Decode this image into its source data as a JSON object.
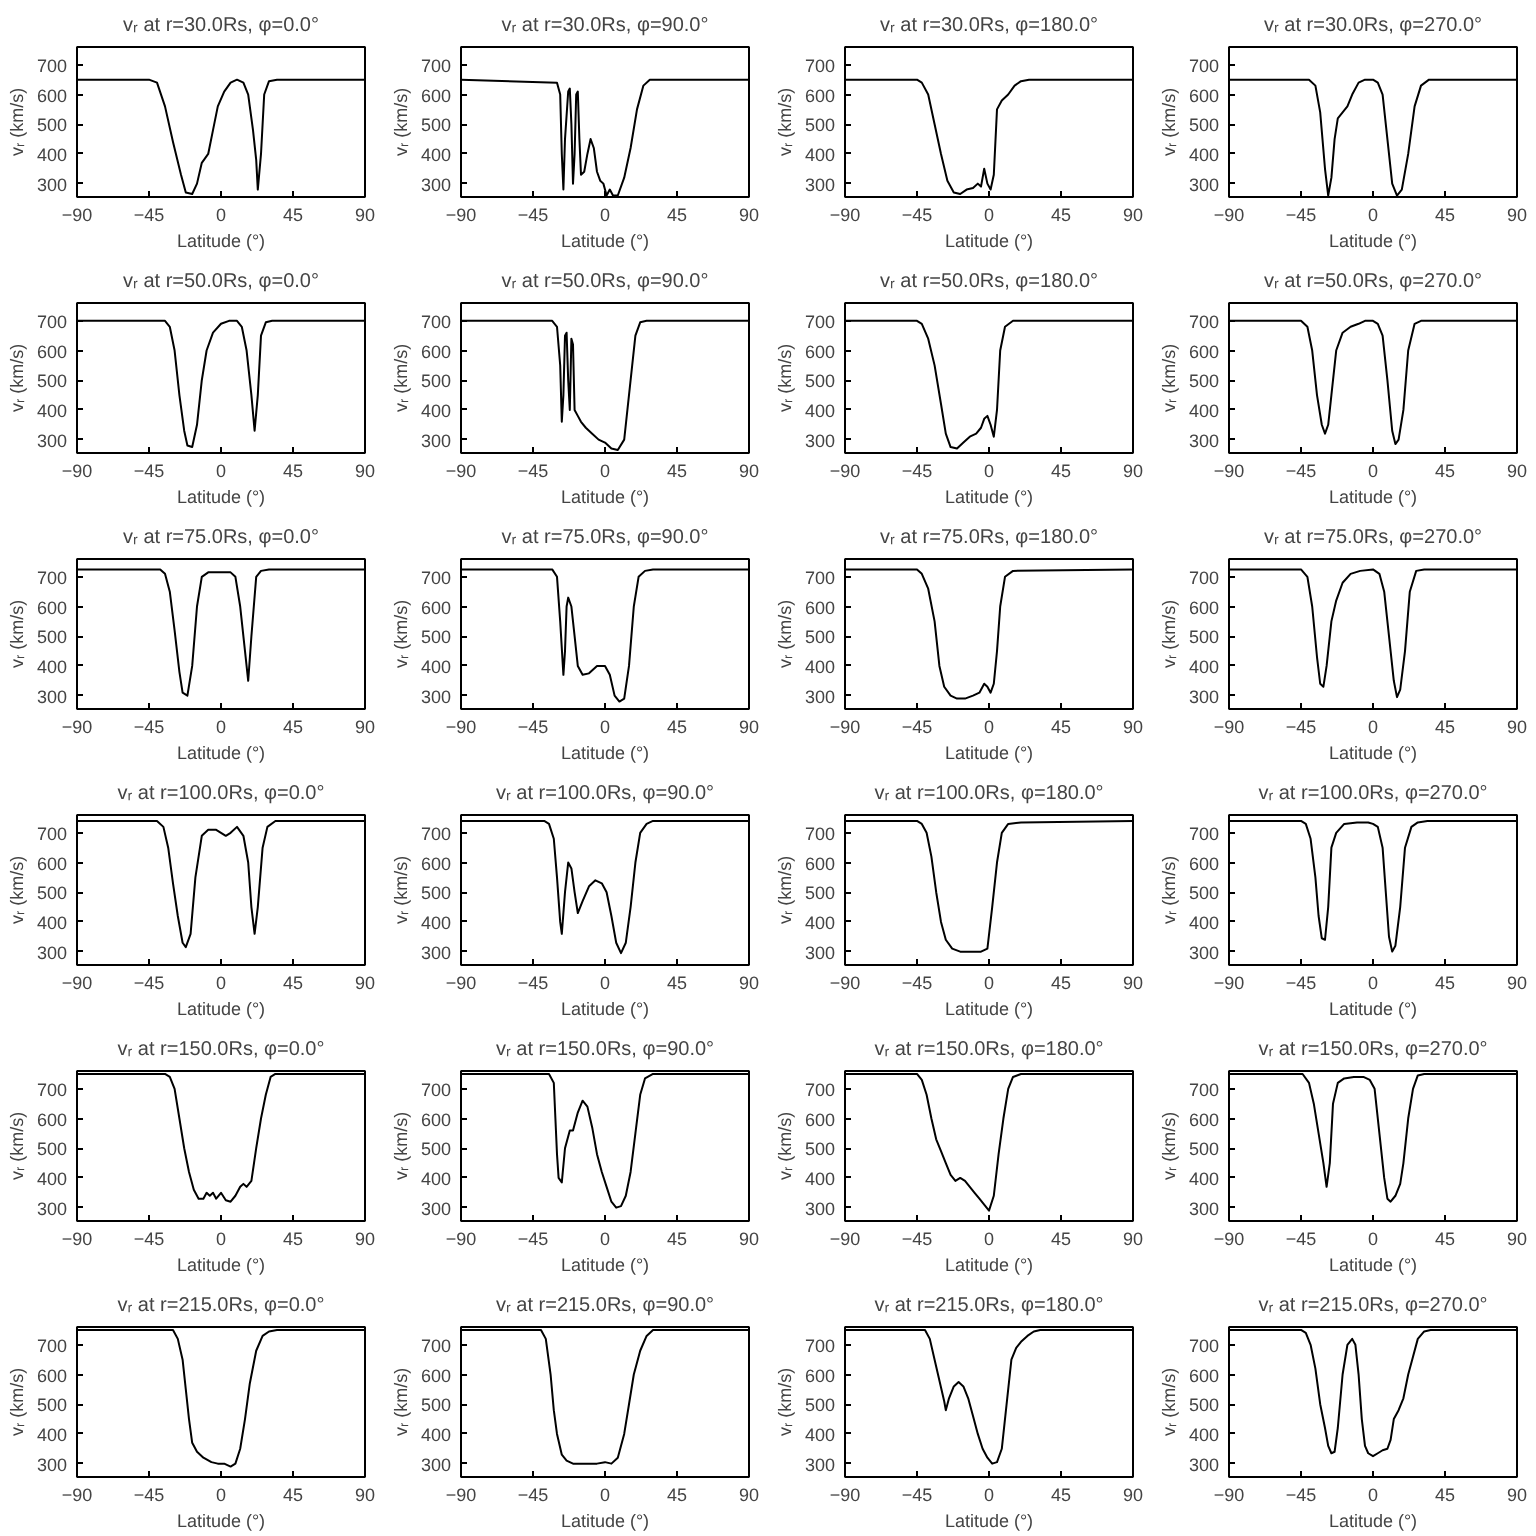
{
  "chart_data": [
    {
      "type": "line",
      "title": "vᵣ at r=30.0Rs, φ=0.0°",
      "xlabel": "Latitude (°)",
      "ylabel": "vᵣ (km/s)",
      "color": "#000000",
      "xlim": [
        -90,
        90
      ],
      "xticks": [
        -90,
        -45,
        0,
        45,
        90
      ],
      "ylim": [
        255,
        760
      ],
      "yticks": [
        300,
        400,
        500,
        600,
        700
      ],
      "grid": false,
      "x": [
        -90,
        -45,
        -40,
        -35,
        -30,
        -25,
        -22,
        -18,
        -15,
        -12,
        -8,
        -5,
        -2,
        2,
        6,
        10,
        14,
        17,
        20,
        22,
        23,
        25,
        27,
        30,
        35,
        90
      ],
      "values": [
        650,
        650,
        640,
        560,
        440,
        330,
        270,
        265,
        300,
        370,
        400,
        480,
        560,
        610,
        640,
        650,
        640,
        600,
        480,
        380,
        280,
        400,
        600,
        645,
        650,
        650
      ]
    },
    {
      "type": "line",
      "title": "vᵣ at r=30.0Rs, φ=90.0°",
      "xlabel": "Latitude (°)",
      "ylabel": "vᵣ (km/s)",
      "color": "#000000",
      "xlim": [
        -90,
        90
      ],
      "xticks": [
        -90,
        -45,
        0,
        45,
        90
      ],
      "ylim": [
        255,
        760
      ],
      "yticks": [
        300,
        400,
        500,
        600,
        700
      ],
      "grid": false,
      "x": [
        -90,
        -30,
        -28,
        -27,
        -26,
        -25,
        -23,
        -22,
        -21,
        -20,
        -19,
        -18,
        -17,
        -16,
        -15,
        -13,
        -11,
        -9,
        -7,
        -5,
        -3,
        -1,
        1,
        3,
        5,
        8,
        12,
        16,
        20,
        24,
        28,
        90
      ],
      "values": [
        650,
        640,
        600,
        400,
        280,
        450,
        610,
        620,
        500,
        300,
        400,
        600,
        610,
        450,
        330,
        340,
        400,
        450,
        420,
        340,
        310,
        300,
        260,
        280,
        260,
        260,
        320,
        420,
        550,
        630,
        650,
        650
      ]
    },
    {
      "type": "line",
      "title": "vᵣ at r=30.0Rs, φ=180.0°",
      "xlabel": "Latitude (°)",
      "ylabel": "vᵣ (km/s)",
      "color": "#000000",
      "xlim": [
        -90,
        90
      ],
      "xticks": [
        -90,
        -45,
        0,
        45,
        90
      ],
      "ylim": [
        255,
        760
      ],
      "yticks": [
        300,
        400,
        500,
        600,
        700
      ],
      "grid": false,
      "x": [
        -90,
        -45,
        -42,
        -38,
        -34,
        -30,
        -26,
        -22,
        -18,
        -14,
        -10,
        -7,
        -5,
        -3,
        -1,
        1,
        3,
        5,
        8,
        12,
        16,
        20,
        25,
        90
      ],
      "values": [
        650,
        650,
        640,
        600,
        500,
        400,
        310,
        270,
        265,
        280,
        285,
        300,
        290,
        350,
        300,
        280,
        330,
        550,
        580,
        600,
        630,
        645,
        650,
        650
      ]
    },
    {
      "type": "line",
      "title": "vᵣ at r=30.0Rs, φ=270.0°",
      "xlabel": "Latitude (°)",
      "ylabel": "vᵣ (km/s)",
      "color": "#000000",
      "xlim": [
        -90,
        90
      ],
      "xticks": [
        -90,
        -45,
        0,
        45,
        90
      ],
      "ylim": [
        255,
        760
      ],
      "yticks": [
        300,
        400,
        500,
        600,
        700
      ],
      "grid": false,
      "x": [
        -90,
        -40,
        -36,
        -33,
        -30,
        -28,
        -26,
        -24,
        -22,
        -19,
        -16,
        -13,
        -9,
        -5,
        0,
        3,
        6,
        9,
        12,
        15,
        18,
        22,
        26,
        30,
        35,
        90
      ],
      "values": [
        650,
        650,
        630,
        540,
        350,
        260,
        320,
        450,
        520,
        540,
        560,
        600,
        640,
        650,
        650,
        640,
        600,
        450,
        300,
        260,
        280,
        400,
        560,
        630,
        650,
        650
      ]
    },
    {
      "type": "line",
      "title": "vᵣ at r=50.0Rs, φ=0.0°",
      "xlabel": "Latitude (°)",
      "ylabel": "vᵣ (km/s)",
      "color": "#000000",
      "xlim": [
        -90,
        90
      ],
      "xticks": [
        -90,
        -45,
        0,
        45,
        90
      ],
      "ylim": [
        255,
        760
      ],
      "yticks": [
        300,
        400,
        500,
        600,
        700
      ],
      "grid": false,
      "x": [
        -90,
        -35,
        -32,
        -29,
        -26,
        -23,
        -21,
        -18,
        -15,
        -12,
        -9,
        -5,
        0,
        5,
        10,
        13,
        16,
        19,
        21,
        23,
        25,
        28,
        32,
        90
      ],
      "values": [
        700,
        700,
        680,
        600,
        450,
        330,
        280,
        275,
        350,
        500,
        600,
        660,
        690,
        700,
        700,
        680,
        600,
        450,
        330,
        450,
        650,
        695,
        700,
        700
      ]
    },
    {
      "type": "line",
      "title": "vᵣ at r=50.0Rs, φ=90.0°",
      "xlabel": "Latitude (°)",
      "ylabel": "vᵣ (km/s)",
      "color": "#000000",
      "xlim": [
        -90,
        90
      ],
      "xticks": [
        -90,
        -45,
        0,
        45,
        90
      ],
      "ylim": [
        255,
        760
      ],
      "yticks": [
        300,
        400,
        500,
        600,
        700
      ],
      "grid": false,
      "x": [
        -90,
        -33,
        -30,
        -28,
        -27,
        -26,
        -25,
        -24,
        -23,
        -22,
        -21,
        -20,
        -19,
        -17,
        -15,
        -12,
        -8,
        -4,
        0,
        4,
        8,
        12,
        16,
        19,
        22,
        26,
        90
      ],
      "values": [
        700,
        700,
        680,
        550,
        360,
        450,
        650,
        660,
        500,
        400,
        640,
        620,
        400,
        380,
        360,
        340,
        320,
        300,
        290,
        270,
        265,
        300,
        500,
        650,
        695,
        700,
        700
      ]
    },
    {
      "type": "line",
      "title": "vᵣ at r=50.0Rs, φ=180.0°",
      "xlabel": "Latitude (°)",
      "ylabel": "vᵣ (km/s)",
      "color": "#000000",
      "xlim": [
        -90,
        90
      ],
      "xticks": [
        -90,
        -45,
        0,
        45,
        90
      ],
      "ylim": [
        255,
        760
      ],
      "yticks": [
        300,
        400,
        500,
        600,
        700
      ],
      "grid": false,
      "x": [
        -90,
        -45,
        -42,
        -38,
        -34,
        -30,
        -27,
        -24,
        -20,
        -16,
        -12,
        -8,
        -5,
        -3,
        -1,
        1,
        3,
        5,
        7,
        10,
        15,
        90
      ],
      "values": [
        700,
        700,
        690,
        640,
        550,
        420,
        320,
        275,
        270,
        290,
        310,
        320,
        340,
        370,
        380,
        350,
        310,
        400,
        600,
        680,
        700,
        700
      ]
    },
    {
      "type": "line",
      "title": "vᵣ at r=50.0Rs, φ=270.0°",
      "xlabel": "Latitude (°)",
      "ylabel": "vᵣ (km/s)",
      "color": "#000000",
      "xlim": [
        -90,
        90
      ],
      "xticks": [
        -90,
        -45,
        0,
        45,
        90
      ],
      "ylim": [
        255,
        760
      ],
      "yticks": [
        300,
        400,
        500,
        600,
        700
      ],
      "grid": false,
      "x": [
        -90,
        -45,
        -41,
        -38,
        -35,
        -32,
        -30,
        -28,
        -26,
        -23,
        -19,
        -14,
        -9,
        -5,
        0,
        3,
        6,
        9,
        12,
        14,
        16,
        19,
        22,
        26,
        30,
        90
      ],
      "values": [
        700,
        700,
        680,
        600,
        450,
        350,
        320,
        350,
        450,
        600,
        660,
        680,
        690,
        700,
        700,
        690,
        650,
        500,
        330,
        285,
        300,
        400,
        600,
        690,
        700,
        700
      ]
    },
    {
      "type": "line",
      "title": "vᵣ at r=75.0Rs, φ=0.0°",
      "xlabel": "Latitude (°)",
      "ylabel": "vᵣ (km/s)",
      "color": "#000000",
      "xlim": [
        -90,
        90
      ],
      "xticks": [
        -90,
        -45,
        0,
        45,
        90
      ],
      "ylim": [
        255,
        760
      ],
      "yticks": [
        300,
        400,
        500,
        600,
        700
      ],
      "grid": false,
      "x": [
        -90,
        -38,
        -35,
        -32,
        -29,
        -26,
        -24,
        -21,
        -18,
        -15,
        -12,
        -8,
        0,
        6,
        9,
        12,
        15,
        17,
        19,
        22,
        25,
        30,
        90
      ],
      "values": [
        725,
        725,
        710,
        650,
        520,
        380,
        310,
        300,
        400,
        600,
        700,
        715,
        715,
        715,
        700,
        600,
        450,
        350,
        500,
        700,
        720,
        725,
        725
      ]
    },
    {
      "type": "line",
      "title": "vᵣ at r=75.0Rs, φ=90.0°",
      "xlabel": "Latitude (°)",
      "ylabel": "vᵣ (km/s)",
      "color": "#000000",
      "xlim": [
        -90,
        90
      ],
      "xticks": [
        -90,
        -45,
        0,
        45,
        90
      ],
      "ylim": [
        255,
        760
      ],
      "yticks": [
        300,
        400,
        500,
        600,
        700
      ],
      "grid": false,
      "x": [
        -90,
        -33,
        -30,
        -28,
        -26,
        -25,
        -24,
        -23,
        -21,
        -19,
        -17,
        -14,
        -10,
        -5,
        0,
        3,
        6,
        9,
        12,
        15,
        18,
        21,
        25,
        30,
        90
      ],
      "values": [
        725,
        725,
        700,
        550,
        370,
        450,
        600,
        630,
        600,
        500,
        400,
        370,
        375,
        400,
        400,
        370,
        300,
        280,
        290,
        400,
        600,
        700,
        720,
        725,
        725
      ]
    },
    {
      "type": "line",
      "title": "vᵣ at r=75.0Rs, φ=180.0°",
      "xlabel": "Latitude (°)",
      "ylabel": "vᵣ (km/s)",
      "color": "#000000",
      "xlim": [
        -90,
        90
      ],
      "xticks": [
        -90,
        -45,
        0,
        45,
        90
      ],
      "ylim": [
        255,
        760
      ],
      "yticks": [
        300,
        400,
        500,
        600,
        700
      ],
      "grid": false,
      "x": [
        -90,
        -45,
        -42,
        -38,
        -34,
        -31,
        -28,
        -24,
        -20,
        -15,
        -10,
        -6,
        -3,
        -1,
        1,
        3,
        5,
        7,
        10,
        15,
        90
      ],
      "values": [
        725,
        725,
        710,
        660,
        550,
        400,
        330,
        300,
        290,
        290,
        300,
        310,
        340,
        330,
        310,
        340,
        450,
        600,
        700,
        720,
        725
      ]
    },
    {
      "type": "line",
      "title": "vᵣ at r=75.0Rs, φ=270.0°",
      "xlabel": "Latitude (°)",
      "ylabel": "vᵣ (km/s)",
      "color": "#000000",
      "xlim": [
        -90,
        90
      ],
      "xticks": [
        -90,
        -45,
        0,
        45,
        90
      ],
      "ylim": [
        255,
        760
      ],
      "yticks": [
        300,
        400,
        500,
        600,
        700
      ],
      "grid": false,
      "x": [
        -90,
        -45,
        -41,
        -38,
        -35,
        -33,
        -31,
        -29,
        -26,
        -23,
        -19,
        -14,
        -8,
        0,
        4,
        7,
        10,
        13,
        15,
        17,
        20,
        23,
        27,
        32,
        90
      ],
      "values": [
        725,
        725,
        700,
        600,
        430,
        340,
        330,
        400,
        550,
        620,
        680,
        710,
        720,
        725,
        710,
        650,
        500,
        350,
        295,
        320,
        450,
        650,
        720,
        725,
        725
      ]
    },
    {
      "type": "line",
      "title": "vᵣ at r=100.0Rs, φ=0.0°",
      "xlabel": "Latitude (°)",
      "ylabel": "vᵣ (km/s)",
      "color": "#000000",
      "xlim": [
        -90,
        90
      ],
      "xticks": [
        -90,
        -45,
        0,
        45,
        90
      ],
      "ylim": [
        255,
        760
      ],
      "yticks": [
        300,
        400,
        500,
        600,
        700
      ],
      "grid": false,
      "x": [
        -90,
        -40,
        -36,
        -33,
        -30,
        -27,
        -24,
        -22,
        -19,
        -16,
        -12,
        -8,
        -3,
        0,
        3,
        6,
        10,
        14,
        17,
        19,
        21,
        23,
        26,
        29,
        34,
        90
      ],
      "values": [
        740,
        740,
        720,
        650,
        530,
        420,
        330,
        315,
        360,
        550,
        690,
        710,
        710,
        700,
        690,
        700,
        720,
        690,
        600,
        450,
        360,
        450,
        650,
        720,
        740,
        740
      ]
    },
    {
      "type": "line",
      "title": "vᵣ at r=100.0Rs, φ=90.0°",
      "xlabel": "Latitude (°)",
      "ylabel": "vᵣ (km/s)",
      "color": "#000000",
      "xlim": [
        -90,
        90
      ],
      "xticks": [
        -90,
        -45,
        0,
        45,
        90
      ],
      "ylim": [
        255,
        760
      ],
      "yticks": [
        300,
        400,
        500,
        600,
        700
      ],
      "grid": false,
      "x": [
        -90,
        -38,
        -35,
        -32,
        -30,
        -28,
        -27,
        -25,
        -23,
        -21,
        -19,
        -17,
        -14,
        -10,
        -6,
        -2,
        1,
        4,
        7,
        10,
        13,
        16,
        19,
        22,
        26,
        30,
        90
      ],
      "values": [
        740,
        740,
        730,
        680,
        550,
        400,
        360,
        500,
        600,
        580,
        500,
        430,
        470,
        520,
        540,
        530,
        500,
        420,
        330,
        295,
        330,
        450,
        600,
        700,
        730,
        740,
        740
      ]
    },
    {
      "type": "line",
      "title": "vᵣ at r=100.0Rs, φ=180.0°",
      "xlabel": "Latitude (°)",
      "ylabel": "vᵣ (km/s)",
      "color": "#000000",
      "xlim": [
        -90,
        90
      ],
      "xticks": [
        -90,
        -45,
        0,
        45,
        90
      ],
      "ylim": [
        255,
        760
      ],
      "yticks": [
        300,
        400,
        500,
        600,
        700
      ],
      "grid": false,
      "x": [
        -90,
        -45,
        -42,
        -39,
        -36,
        -33,
        -30,
        -27,
        -23,
        -18,
        -10,
        -5,
        -1,
        2,
        5,
        8,
        12,
        20,
        90
      ],
      "values": [
        740,
        740,
        730,
        700,
        620,
        500,
        400,
        340,
        310,
        300,
        300,
        300,
        310,
        450,
        600,
        700,
        730,
        735,
        740
      ]
    },
    {
      "type": "line",
      "title": "vᵣ at r=100.0Rs, φ=270.0°",
      "xlabel": "Latitude (°)",
      "ylabel": "vᵣ (km/s)",
      "color": "#000000",
      "xlim": [
        -90,
        90
      ],
      "xticks": [
        -90,
        -45,
        0,
        45,
        90
      ],
      "ylim": [
        255,
        760
      ],
      "yticks": [
        300,
        400,
        500,
        600,
        700
      ],
      "grid": false,
      "x": [
        -90,
        -45,
        -42,
        -39,
        -36,
        -34,
        -32,
        -30,
        -28,
        -26,
        -23,
        -18,
        -10,
        -3,
        0,
        3,
        6,
        8,
        10,
        12,
        14,
        17,
        20,
        24,
        28,
        34,
        90
      ],
      "values": [
        740,
        740,
        730,
        680,
        550,
        420,
        345,
        340,
        450,
        650,
        700,
        730,
        735,
        735,
        730,
        720,
        650,
        500,
        350,
        300,
        320,
        450,
        650,
        720,
        735,
        740,
        740
      ]
    },
    {
      "type": "line",
      "title": "vᵣ at r=150.0Rs, φ=0.0°",
      "xlabel": "Latitude (°)",
      "ylabel": "vᵣ (km/s)",
      "color": "#000000",
      "xlim": [
        -90,
        90
      ],
      "xticks": [
        -90,
        -45,
        0,
        45,
        90
      ],
      "ylim": [
        255,
        760
      ],
      "yticks": [
        300,
        400,
        500,
        600,
        700
      ],
      "grid": false,
      "x": [
        -90,
        -35,
        -32,
        -29,
        -26,
        -23,
        -20,
        -17,
        -14,
        -11,
        -9,
        -7,
        -5,
        -3,
        0,
        3,
        6,
        9,
        12,
        14,
        16,
        19,
        22,
        25,
        28,
        31,
        34,
        90
      ],
      "values": [
        750,
        750,
        740,
        700,
        600,
        500,
        420,
        360,
        330,
        330,
        350,
        340,
        350,
        330,
        350,
        325,
        320,
        340,
        370,
        380,
        370,
        390,
        500,
        600,
        680,
        740,
        750,
        750
      ]
    },
    {
      "type": "line",
      "title": "vᵣ at r=150.0Rs, φ=90.0°",
      "xlabel": "Latitude (°)",
      "ylabel": "vᵣ (km/s)",
      "color": "#000000",
      "xlim": [
        -90,
        90
      ],
      "xticks": [
        -90,
        -45,
        0,
        45,
        90
      ],
      "ylim": [
        255,
        760
      ],
      "yticks": [
        300,
        400,
        500,
        600,
        700
      ],
      "grid": false,
      "x": [
        -90,
        -35,
        -32,
        -31,
        -30,
        -29,
        -27,
        -25,
        -22,
        -20,
        -17,
        -14,
        -11,
        -8,
        -5,
        -2,
        1,
        4,
        7,
        10,
        13,
        16,
        19,
        22,
        25,
        30,
        90
      ],
      "values": [
        750,
        750,
        720,
        600,
        480,
        400,
        385,
        500,
        560,
        560,
        620,
        660,
        640,
        570,
        480,
        420,
        370,
        320,
        300,
        305,
        340,
        420,
        550,
        680,
        735,
        750,
        750
      ]
    },
    {
      "type": "line",
      "title": "vᵣ at r=150.0Rs, φ=180.0°",
      "xlabel": "Latitude (°)",
      "ylabel": "vᵣ (km/s)",
      "color": "#000000",
      "xlim": [
        -90,
        90
      ],
      "xticks": [
        -90,
        -45,
        0,
        45,
        90
      ],
      "ylim": [
        255,
        760
      ],
      "yticks": [
        300,
        400,
        500,
        600,
        700
      ],
      "grid": false,
      "x": [
        -90,
        -45,
        -42,
        -39,
        -36,
        -33,
        -30,
        -27,
        -24,
        -21,
        -18,
        -15,
        -12,
        -9,
        -6,
        -3,
        0,
        3,
        6,
        9,
        12,
        15,
        20,
        90
      ],
      "values": [
        750,
        750,
        730,
        680,
        600,
        530,
        490,
        450,
        410,
        390,
        400,
        390,
        370,
        350,
        330,
        310,
        290,
        340,
        480,
        600,
        700,
        740,
        750,
        750
      ]
    },
    {
      "type": "line",
      "title": "vᵣ at r=150.0Rs, φ=270.0°",
      "xlabel": "Latitude (°)",
      "ylabel": "vᵣ (km/s)",
      "color": "#000000",
      "xlim": [
        -90,
        90
      ],
      "xticks": [
        -90,
        -45,
        0,
        45,
        90
      ],
      "ylim": [
        255,
        760
      ],
      "yticks": [
        300,
        400,
        500,
        600,
        700
      ],
      "grid": false,
      "x": [
        -90,
        -44,
        -40,
        -37,
        -34,
        -31,
        -29,
        -27,
        -25,
        -22,
        -18,
        -12,
        -6,
        -2,
        1,
        4,
        7,
        9,
        11,
        14,
        17,
        19,
        22,
        25,
        28,
        32,
        90
      ],
      "values": [
        750,
        750,
        720,
        650,
        550,
        450,
        370,
        450,
        650,
        720,
        735,
        740,
        740,
        730,
        700,
        550,
        400,
        330,
        320,
        340,
        380,
        450,
        600,
        700,
        745,
        750,
        750
      ]
    },
    {
      "type": "line",
      "title": "vᵣ at r=215.0Rs, φ=0.0°",
      "xlabel": "Latitude (°)",
      "ylabel": "vᵣ (km/s)",
      "color": "#000000",
      "xlim": [
        -90,
        90
      ],
      "xticks": [
        -90,
        -45,
        0,
        45,
        90
      ],
      "ylim": [
        255,
        760
      ],
      "yticks": [
        300,
        400,
        500,
        600,
        700
      ],
      "grid": false,
      "x": [
        -90,
        -30,
        -27,
        -24,
        -22,
        -20,
        -18,
        -15,
        -11,
        -6,
        -2,
        2,
        6,
        9,
        12,
        15,
        18,
        22,
        26,
        30,
        35,
        90
      ],
      "values": [
        750,
        750,
        720,
        650,
        550,
        450,
        370,
        340,
        320,
        305,
        300,
        300,
        290,
        300,
        350,
        450,
        570,
        680,
        730,
        745,
        750,
        750
      ]
    },
    {
      "type": "line",
      "title": "vᵣ at r=215.0Rs, φ=90.0°",
      "xlabel": "Latitude (°)",
      "ylabel": "vᵣ (km/s)",
      "color": "#000000",
      "xlim": [
        -90,
        90
      ],
      "xticks": [
        -90,
        -45,
        0,
        45,
        90
      ],
      "ylim": [
        255,
        760
      ],
      "yticks": [
        300,
        400,
        500,
        600,
        700
      ],
      "grid": false,
      "x": [
        -90,
        -40,
        -37,
        -34,
        -32,
        -30,
        -27,
        -24,
        -20,
        -15,
        -10,
        -5,
        0,
        4,
        8,
        12,
        15,
        18,
        22,
        26,
        30,
        90
      ],
      "values": [
        750,
        750,
        720,
        600,
        480,
        400,
        330,
        310,
        300,
        300,
        300,
        300,
        305,
        300,
        320,
        400,
        500,
        600,
        680,
        730,
        750,
        750
      ]
    },
    {
      "type": "line",
      "title": "vᵣ at r=215.0Rs, φ=180.0°",
      "xlabel": "Latitude (°)",
      "ylabel": "vᵣ (km/s)",
      "color": "#000000",
      "xlim": [
        -90,
        90
      ],
      "xticks": [
        -90,
        -45,
        0,
        45,
        90
      ],
      "ylim": [
        255,
        760
      ],
      "yticks": [
        300,
        400,
        500,
        600,
        700
      ],
      "grid": false,
      "x": [
        -90,
        -40,
        -37,
        -34,
        -31,
        -28,
        -27,
        -25,
        -22,
        -19,
        -16,
        -13,
        -10,
        -7,
        -4,
        -1,
        2,
        5,
        8,
        11,
        14,
        17,
        20,
        24,
        28,
        32,
        90
      ],
      "values": [
        750,
        750,
        720,
        650,
        580,
        510,
        480,
        520,
        560,
        575,
        560,
        520,
        460,
        400,
        350,
        320,
        300,
        305,
        350,
        500,
        650,
        690,
        710,
        730,
        745,
        750,
        750
      ]
    },
    {
      "type": "line",
      "title": "vᵣ at r=215.0Rs, φ=270.0°",
      "xlabel": "Latitude (°)",
      "ylabel": "vᵣ (km/s)",
      "color": "#000000",
      "xlim": [
        -90,
        90
      ],
      "xticks": [
        -90,
        -45,
        0,
        45,
        90
      ],
      "ylim": [
        255,
        760
      ],
      "yticks": [
        300,
        400,
        500,
        600,
        700
      ],
      "grid": false,
      "x": [
        -90,
        -45,
        -42,
        -39,
        -36,
        -33,
        -30,
        -28,
        -26,
        -24,
        -22,
        -19,
        -16,
        -13,
        -11,
        -9,
        -7,
        -5,
        -3,
        0,
        3,
        6,
        9,
        11,
        13,
        16,
        19,
        22,
        25,
        28,
        32,
        36,
        90
      ],
      "values": [
        750,
        750,
        740,
        700,
        620,
        500,
        420,
        360,
        335,
        340,
        420,
        600,
        700,
        720,
        700,
        600,
        450,
        360,
        335,
        325,
        335,
        345,
        350,
        380,
        450,
        480,
        520,
        600,
        660,
        720,
        745,
        750,
        750
      ]
    }
  ]
}
